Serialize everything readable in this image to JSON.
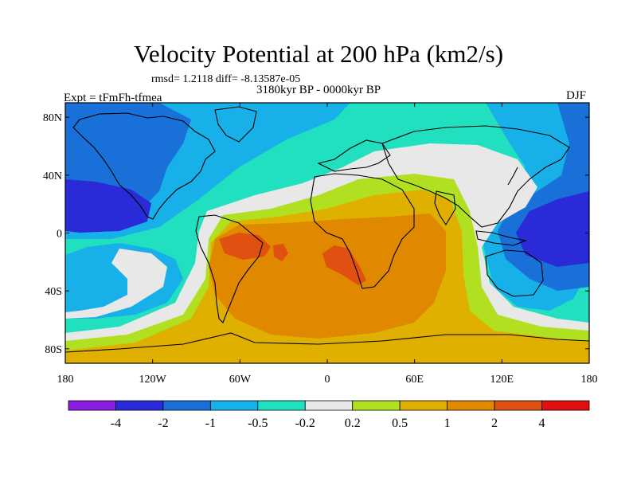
{
  "figure": {
    "title": "Velocity Potential at 200 hPa (km2/s)",
    "stats": "rmsd= 1.2118 diff= -8.13587e-05",
    "period": "3180kyr BP - 0000kyr BP",
    "experiment": "Expt = tFmFh-tfmea",
    "season": "DJF"
  },
  "map": {
    "projection": "cylindrical equidistant",
    "lon_range": [
      -180,
      180
    ],
    "lat_range": [
      -90,
      90
    ],
    "x_ticks": [
      {
        "lon": -180,
        "label": "180"
      },
      {
        "lon": -120,
        "label": "120W"
      },
      {
        "lon": -60,
        "label": "60W"
      },
      {
        "lon": 0,
        "label": "0"
      },
      {
        "lon": 60,
        "label": "60E"
      },
      {
        "lon": 120,
        "label": "120E"
      },
      {
        "lon": 180,
        "label": "180"
      }
    ],
    "y_ticks": [
      {
        "lat": 80,
        "label": "80N"
      },
      {
        "lat": 40,
        "label": "40N"
      },
      {
        "lat": 0,
        "label": "0"
      },
      {
        "lat": -40,
        "label": "40S"
      },
      {
        "lat": -80,
        "label": "80S"
      }
    ]
  },
  "colorbar": {
    "colors": [
      "#8b1fe0",
      "#2a2ad8",
      "#1870d8",
      "#18b0e8",
      "#20e0c0",
      "#e8e8e8",
      "#b0e020",
      "#e0b000",
      "#e08800",
      "#e05010",
      "#e01010"
    ],
    "labels": [
      {
        "boundary": 1,
        "label": "-4"
      },
      {
        "boundary": 2,
        "label": "-2"
      },
      {
        "boundary": 3,
        "label": "-1"
      },
      {
        "boundary": 4,
        "label": "-0.5"
      },
      {
        "boundary": 5,
        "label": "-0.2"
      },
      {
        "boundary": 6,
        "label": "0.2"
      },
      {
        "boundary": 7,
        "label": "0.5"
      },
      {
        "boundary": 8,
        "label": "1"
      },
      {
        "boundary": 9,
        "label": "2"
      },
      {
        "boundary": 10,
        "label": "4"
      }
    ]
  }
}
